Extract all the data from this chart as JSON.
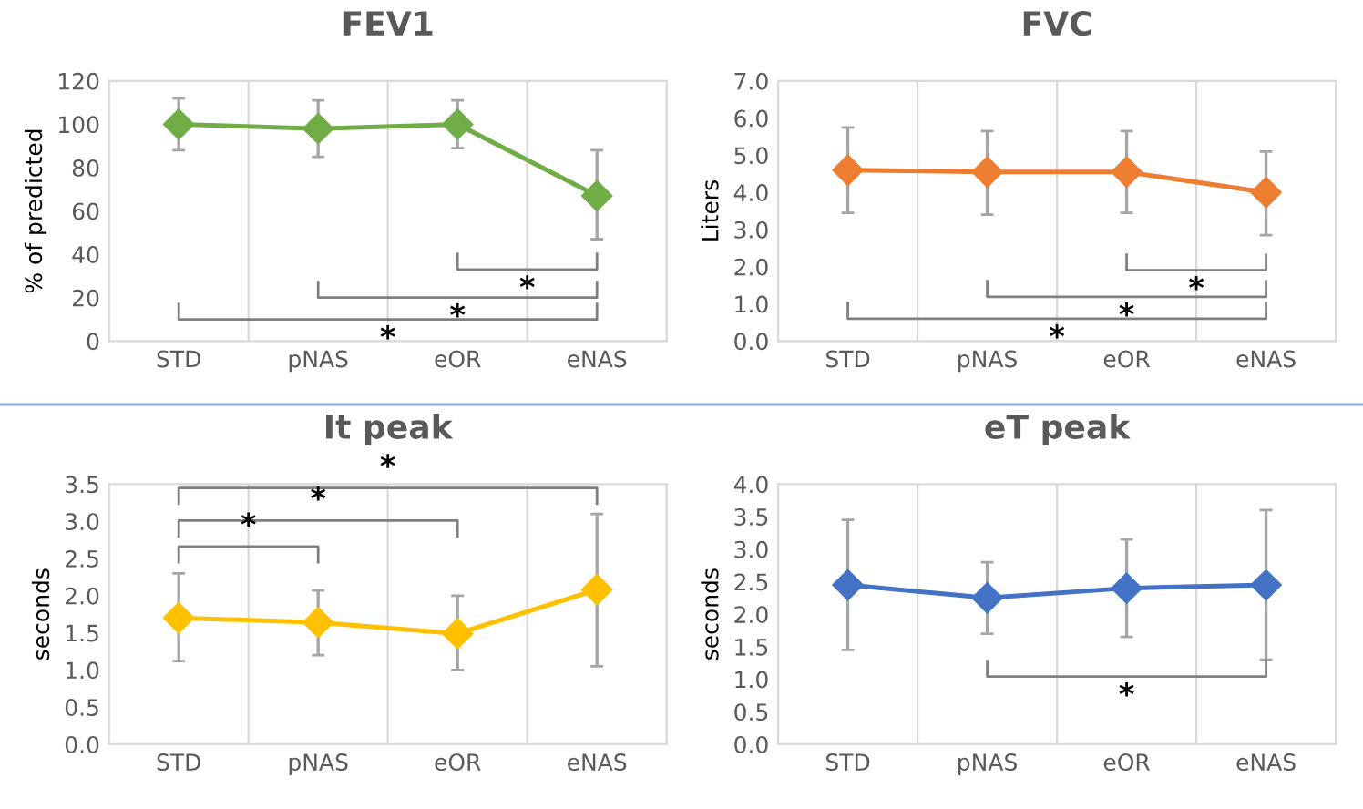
{
  "chart_data": [
    {
      "type": "line",
      "title": "FEV1",
      "ylabel": "% of predicted",
      "categories": [
        "STD",
        "pNAS",
        "eOR",
        "eNAS"
      ],
      "series": [
        {
          "color": "#70ad47",
          "values": [
            100,
            98,
            100,
            67
          ],
          "errors": [
            [
              88,
              112
            ],
            [
              85,
              111
            ],
            [
              89,
              111
            ],
            [
              47,
              88
            ]
          ]
        }
      ],
      "ylim": [
        0,
        120
      ],
      "yticks": [
        0,
        20,
        40,
        60,
        80,
        100,
        120
      ],
      "grid": "x",
      "marker": "diamond",
      "annotations": [
        "*",
        "*",
        "*"
      ]
    },
    {
      "type": "line",
      "title": "FVC",
      "ylabel": "Liters",
      "categories": [
        "STD",
        "pNAS",
        "eOR",
        "eNAS"
      ],
      "series": [
        {
          "color": "#ed7d31",
          "values": [
            4.6,
            4.55,
            4.55,
            4.0
          ],
          "errors": [
            [
              3.45,
              5.75
            ],
            [
              3.4,
              5.65
            ],
            [
              3.45,
              5.65
            ],
            [
              2.85,
              5.1
            ]
          ]
        }
      ],
      "ylim": [
        0,
        7
      ],
      "yticks": [
        {
          "value": 0,
          "label": "0.0"
        },
        {
          "value": 1,
          "label": "1.0"
        },
        {
          "value": 2,
          "label": "2.0"
        },
        {
          "value": 3,
          "label": "3.0"
        },
        {
          "value": 4,
          "label": "4.0"
        },
        {
          "value": 5,
          "label": "5.0"
        },
        {
          "value": 6,
          "label": "6.0"
        },
        {
          "value": 7,
          "label": "7.0"
        }
      ],
      "grid": "x",
      "marker": "diamond",
      "annotations": [
        "*",
        "*",
        "*"
      ]
    },
    {
      "type": "line",
      "title": "It peak",
      "ylabel": "seconds",
      "categories": [
        "STD",
        "pNAS",
        "eOR",
        "eNAS"
      ],
      "series": [
        {
          "color": "#ffc000",
          "values": [
            1.7,
            1.64,
            1.49,
            2.08
          ],
          "errors": [
            [
              1.12,
              2.3
            ],
            [
              1.2,
              2.07
            ],
            [
              1.0,
              2.0
            ],
            [
              1.05,
              3.1
            ]
          ]
        }
      ],
      "ylim": [
        0,
        3.5
      ],
      "yticks": [
        {
          "value": 0,
          "label": "0.0"
        },
        {
          "value": 0.5,
          "label": "0.5"
        },
        {
          "value": 1,
          "label": "1.0"
        },
        {
          "value": 1.5,
          "label": "1.5"
        },
        {
          "value": 2,
          "label": "2.0"
        },
        {
          "value": 2.5,
          "label": "2.5"
        },
        {
          "value": 3,
          "label": "3.0"
        },
        {
          "value": 3.5,
          "label": "3.5"
        }
      ],
      "grid": "x",
      "marker": "diamond",
      "annotations": [
        "*",
        "*",
        "*"
      ]
    },
    {
      "type": "line",
      "title": "eT peak",
      "ylabel": "seconds",
      "categories": [
        "STD",
        "pNAS",
        "eOR",
        "eNAS"
      ],
      "series": [
        {
          "color": "#4472c4",
          "values": [
            2.45,
            2.25,
            2.4,
            2.45
          ],
          "errors": [
            [
              1.45,
              3.45
            ],
            [
              1.7,
              2.8
            ],
            [
              1.65,
              3.15
            ],
            [
              1.3,
              3.6
            ]
          ]
        }
      ],
      "ylim": [
        0,
        4
      ],
      "yticks": [
        {
          "value": 0,
          "label": "0.0"
        },
        {
          "value": 0.5,
          "label": "0.5"
        },
        {
          "value": 1,
          "label": "1.0"
        },
        {
          "value": 1.5,
          "label": "1.5"
        },
        {
          "value": 2,
          "label": "2.0"
        },
        {
          "value": 2.5,
          "label": "2.5"
        },
        {
          "value": 3,
          "label": "3.0"
        },
        {
          "value": 3.5,
          "label": "3.5"
        },
        {
          "value": 4,
          "label": "4.0"
        }
      ],
      "grid": "x",
      "marker": "diamond",
      "annotations": [
        "*"
      ]
    }
  ]
}
